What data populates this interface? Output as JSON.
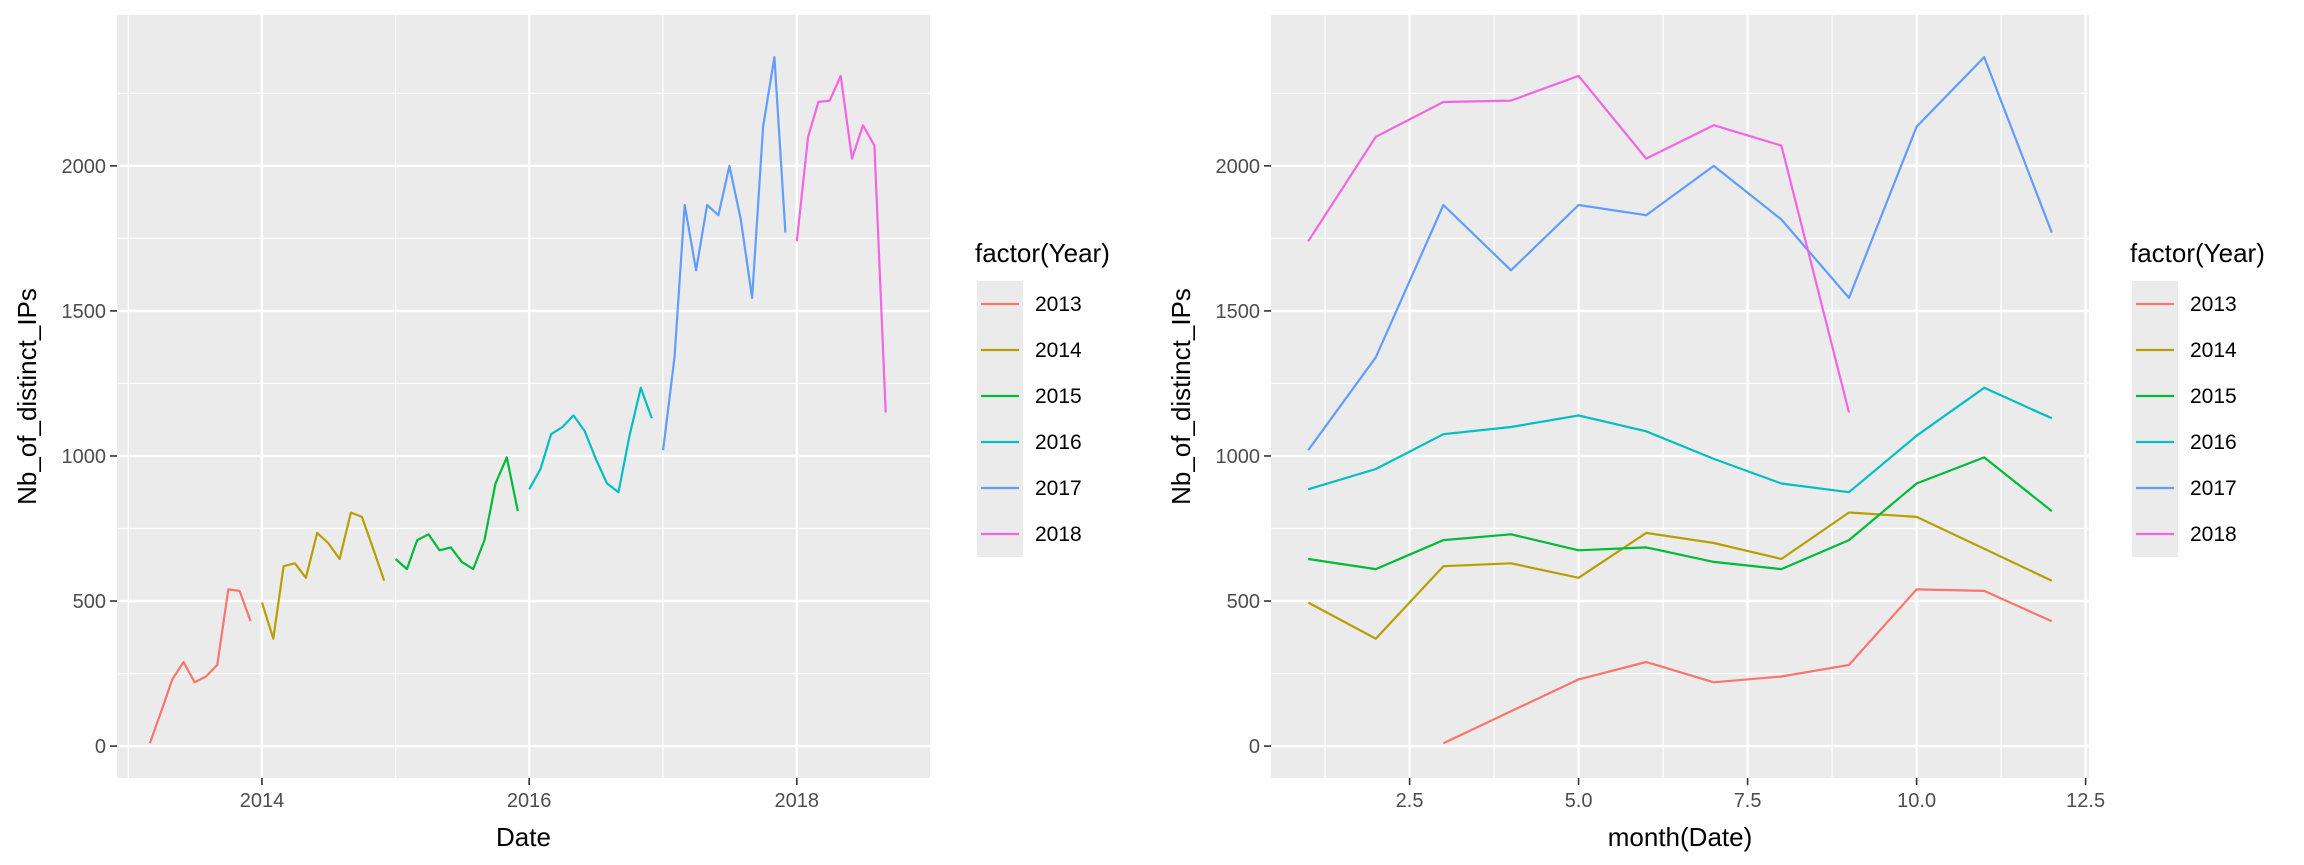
{
  "chart_data": [
    {
      "type": "line",
      "xlabel": "Date",
      "ylabel": "Nb_of_distinct_IPs",
      "x_type": "date",
      "xlim": [
        "2012-12-01",
        "2018-12-31"
      ],
      "ylim": [
        -110,
        2520
      ],
      "xticks": [
        "2014-01-01",
        "2016-01-01",
        "2018-01-01"
      ],
      "xtick_labels": [
        "2014",
        "2016",
        "2018"
      ],
      "yticks": [
        0,
        500,
        1000,
        1500,
        2000
      ],
      "ytick_labels": [
        "0",
        "500",
        "1000",
        "1500",
        "2000"
      ],
      "grid": true,
      "legend_title": "factor(Year)",
      "legend_position": "right",
      "series": [
        {
          "name": "2013",
          "color": "#F8766D",
          "x": [
            "2013-03-01",
            "2013-04-01",
            "2013-05-01",
            "2013-06-01",
            "2013-07-01",
            "2013-08-01",
            "2013-09-01",
            "2013-10-01",
            "2013-11-01",
            "2013-12-01"
          ],
          "y": [
            10,
            120,
            230,
            290,
            220,
            240,
            280,
            540,
            535,
            430
          ]
        },
        {
          "name": "2014",
          "color": "#B79F00",
          "x": [
            "2014-01-01",
            "2014-02-01",
            "2014-03-01",
            "2014-04-01",
            "2014-05-01",
            "2014-06-01",
            "2014-07-01",
            "2014-08-01",
            "2014-09-01",
            "2014-10-01",
            "2014-11-01",
            "2014-12-01"
          ],
          "y": [
            495,
            370,
            620,
            630,
            580,
            735,
            700,
            645,
            805,
            790,
            680,
            570
          ]
        },
        {
          "name": "2015",
          "color": "#00BA38",
          "x": [
            "2015-01-01",
            "2015-02-01",
            "2015-03-01",
            "2015-04-01",
            "2015-05-01",
            "2015-06-01",
            "2015-07-01",
            "2015-08-01",
            "2015-09-01",
            "2015-10-01",
            "2015-11-01",
            "2015-12-01"
          ],
          "y": [
            645,
            610,
            710,
            730,
            675,
            685,
            635,
            610,
            710,
            905,
            995,
            810
          ]
        },
        {
          "name": "2016",
          "color": "#00BFC4",
          "x": [
            "2016-01-01",
            "2016-02-01",
            "2016-03-01",
            "2016-04-01",
            "2016-05-01",
            "2016-06-01",
            "2016-07-01",
            "2016-08-01",
            "2016-09-01",
            "2016-10-01",
            "2016-11-01",
            "2016-12-01"
          ],
          "y": [
            885,
            955,
            1075,
            1100,
            1140,
            1085,
            990,
            905,
            875,
            1070,
            1235,
            1130
          ]
        },
        {
          "name": "2017",
          "color": "#619CFF",
          "x": [
            "2017-01-01",
            "2017-02-01",
            "2017-03-01",
            "2017-04-01",
            "2017-05-01",
            "2017-06-01",
            "2017-07-01",
            "2017-08-01",
            "2017-09-01",
            "2017-10-01",
            "2017-11-01",
            "2017-12-01"
          ],
          "y": [
            1020,
            1340,
            1865,
            1640,
            1865,
            1830,
            2000,
            1815,
            1545,
            2135,
            2375,
            1770
          ]
        },
        {
          "name": "2018",
          "color": "#F564E3",
          "x": [
            "2018-01-01",
            "2018-02-01",
            "2018-03-01",
            "2018-04-01",
            "2018-05-01",
            "2018-06-01",
            "2018-07-01",
            "2018-08-01",
            "2018-09-01"
          ],
          "y": [
            1740,
            2100,
            2220,
            2225,
            2310,
            2025,
            2140,
            2070,
            1150
          ]
        }
      ]
    },
    {
      "type": "line",
      "xlabel": "month(Date)",
      "ylabel": "Nb_of_distinct_IPs",
      "xlim": [
        0.45,
        12.55
      ],
      "ylim": [
        -110,
        2520
      ],
      "xticks": [
        2.5,
        5.0,
        7.5,
        10.0,
        12.5
      ],
      "xtick_labels": [
        "2.5",
        "5.0",
        "7.5",
        "10.0",
        "12.5"
      ],
      "yticks": [
        0,
        500,
        1000,
        1500,
        2000
      ],
      "ytick_labels": [
        "0",
        "500",
        "1000",
        "1500",
        "2000"
      ],
      "grid": true,
      "legend_title": "factor(Year)",
      "legend_position": "right",
      "series": [
        {
          "name": "2013",
          "color": "#F8766D",
          "x": [
            3,
            4,
            5,
            6,
            7,
            8,
            9,
            10,
            11,
            12
          ],
          "y": [
            10,
            120,
            230,
            290,
            220,
            240,
            280,
            540,
            535,
            430
          ]
        },
        {
          "name": "2014",
          "color": "#B79F00",
          "x": [
            1,
            2,
            3,
            4,
            5,
            6,
            7,
            8,
            9,
            10,
            11,
            12
          ],
          "y": [
            495,
            370,
            620,
            630,
            580,
            735,
            700,
            645,
            805,
            790,
            680,
            570
          ]
        },
        {
          "name": "2015",
          "color": "#00BA38",
          "x": [
            1,
            2,
            3,
            4,
            5,
            6,
            7,
            8,
            9,
            10,
            11,
            12
          ],
          "y": [
            645,
            610,
            710,
            730,
            675,
            685,
            635,
            610,
            710,
            905,
            995,
            810
          ]
        },
        {
          "name": "2016",
          "color": "#00BFC4",
          "x": [
            1,
            2,
            3,
            4,
            5,
            6,
            7,
            8,
            9,
            10,
            11,
            12
          ],
          "y": [
            885,
            955,
            1075,
            1100,
            1140,
            1085,
            990,
            905,
            875,
            1070,
            1235,
            1130
          ]
        },
        {
          "name": "2017",
          "color": "#619CFF",
          "x": [
            1,
            2,
            3,
            4,
            5,
            6,
            7,
            8,
            9,
            10,
            11,
            12
          ],
          "y": [
            1020,
            1340,
            1865,
            1640,
            1865,
            1830,
            2000,
            1815,
            1545,
            2135,
            2375,
            1770
          ]
        },
        {
          "name": "2018",
          "color": "#F564E3",
          "x": [
            1,
            2,
            3,
            4,
            5,
            6,
            7,
            8,
            9
          ],
          "y": [
            1740,
            2100,
            2220,
            2225,
            2310,
            2025,
            2140,
            2070,
            1150
          ]
        }
      ]
    }
  ]
}
